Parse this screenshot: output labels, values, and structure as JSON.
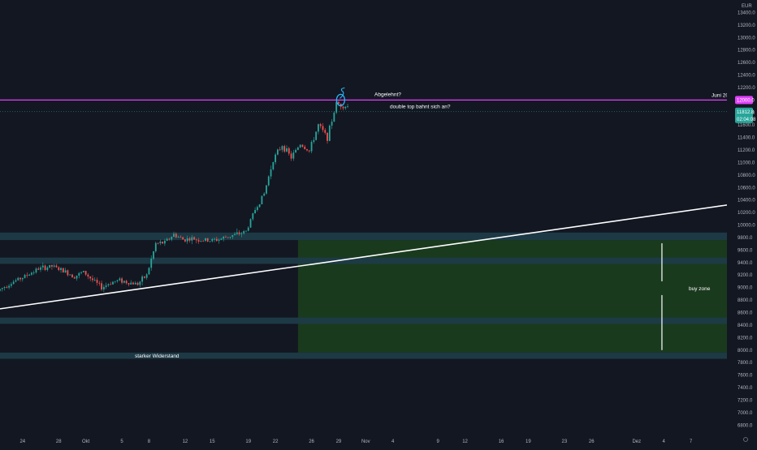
{
  "chart_data": {
    "type": "candlestick",
    "currency": "EUR",
    "y_ticks": [
      6800,
      7000,
      7200,
      7400,
      7600,
      7800,
      8000,
      8200,
      8400,
      8600,
      8800,
      9000,
      9200,
      9400,
      9600,
      9800,
      10000,
      10200,
      10400,
      10600,
      10800,
      11000,
      11200,
      11400,
      11600,
      11800,
      12000,
      12200,
      12400,
      12600,
      12800,
      13000,
      13200,
      13400
    ],
    "y_tick_labels": [
      "6800.0",
      "7000.0",
      "7200.0",
      "7400.0",
      "7600.0",
      "7800.0",
      "8000.0",
      "8200.0",
      "8400.0",
      "8600.0",
      "8800.0",
      "9000.0",
      "9200.0",
      "9400.0",
      "9600.0",
      "9800.0",
      "10000.0",
      "10200.0",
      "10400.0",
      "10600.0",
      "10800.0",
      "11000.0",
      "11200.0",
      "11400.0",
      "11600.0",
      "11800.0",
      "12000.0",
      "12200.0",
      "12400.0",
      "12600.0",
      "12800.0",
      "13000.0",
      "13200.0",
      "13400.0"
    ],
    "ylim": [
      6700,
      13600
    ],
    "x_ticks": [
      {
        "label": "24",
        "day": -7
      },
      {
        "label": "28",
        "day": -3
      },
      {
        "label": "Okt",
        "day": 0
      },
      {
        "label": "5",
        "day": 4
      },
      {
        "label": "8",
        "day": 7
      },
      {
        "label": "12",
        "day": 11
      },
      {
        "label": "15",
        "day": 14
      },
      {
        "label": "19",
        "day": 18
      },
      {
        "label": "22",
        "day": 21
      },
      {
        "label": "26",
        "day": 25
      },
      {
        "label": "29",
        "day": 28
      },
      {
        "label": "Nov",
        "day": 31
      },
      {
        "label": "4",
        "day": 34
      },
      {
        "label": "9",
        "day": 39
      },
      {
        "label": "12",
        "day": 42
      },
      {
        "label": "16",
        "day": 46
      },
      {
        "label": "19",
        "day": 49
      },
      {
        "label": "23",
        "day": 53
      },
      {
        "label": "26",
        "day": 56
      },
      {
        "label": "Dez",
        "day": 61
      },
      {
        "label": "4",
        "day": 64
      },
      {
        "label": "7",
        "day": 67
      }
    ],
    "price_path": [
      [
        -9.5,
        8950
      ],
      [
        -8,
        9080
      ],
      [
        -6.5,
        9180
      ],
      [
        -5,
        9300
      ],
      [
        -3.5,
        9340
      ],
      [
        -2,
        9250
      ],
      [
        -1,
        9180
      ],
      [
        0,
        9250
      ],
      [
        1,
        9120
      ],
      [
        2,
        9000
      ],
      [
        3,
        9080
      ],
      [
        4,
        9120
      ],
      [
        5,
        9080
      ],
      [
        6,
        9060
      ],
      [
        7,
        9200
      ],
      [
        8,
        9700
      ],
      [
        9,
        9720
      ],
      [
        10,
        9850
      ],
      [
        11,
        9770
      ],
      [
        12,
        9780
      ],
      [
        13,
        9760
      ],
      [
        14,
        9750
      ],
      [
        15,
        9770
      ],
      [
        16,
        9820
      ],
      [
        17,
        9850
      ],
      [
        18,
        9900
      ],
      [
        19,
        10250
      ],
      [
        20,
        10500
      ],
      [
        21,
        11050
      ],
      [
        22,
        11280
      ],
      [
        23,
        11080
      ],
      [
        24,
        11300
      ],
      [
        25,
        11180
      ],
      [
        26,
        11600
      ],
      [
        27,
        11400
      ],
      [
        28,
        11950
      ],
      [
        29,
        11900
      ]
    ],
    "current_price_label": "11812.8",
    "countdown_label": "02:04:08",
    "resistance_level": {
      "value": 12000,
      "label": "12000.0",
      "name": "Juni 2019",
      "color": "#e040fb"
    },
    "zones": [
      {
        "from": 9760,
        "to": 9880,
        "start_day": -9.5
      },
      {
        "from": 9380,
        "to": 9480,
        "start_day": -9.5
      },
      {
        "from": 8420,
        "to": 8520,
        "start_day": -9.5
      },
      {
        "from": 7860,
        "to": 7960,
        "start_day": -9.5
      }
    ],
    "buy_zone": {
      "from": 7960,
      "to": 9760,
      "start_day": 23.5,
      "color": "#1a3a1e"
    },
    "trendline": {
      "p1": {
        "day": -9.5,
        "value": 8660
      },
      "p2": {
        "day": 71,
        "value": 10320
      }
    },
    "annotations": {
      "abgelehnt": "Abgelehnt?",
      "double_top": "double top bahnt sich an?",
      "starker_widerstand": "starker Widerstand",
      "buy_zone": "buy zone"
    }
  }
}
